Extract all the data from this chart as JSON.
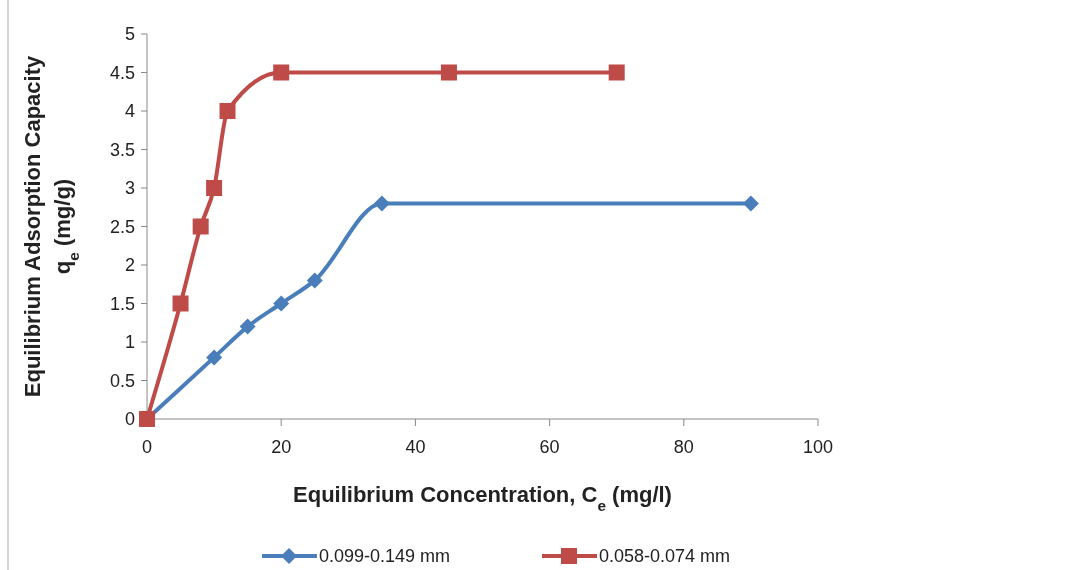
{
  "chart_data": {
    "type": "line",
    "xlabel": "Equilibrium Concentration, C$_{e}$ (mg/l)",
    "ylabel": "Equilibrium Adsorption Capacity\nq$_{e}$ (mg/g)",
    "xlim": [
      0,
      100
    ],
    "xticks": [
      0,
      20,
      40,
      60,
      80,
      100
    ],
    "ylim": [
      0,
      5
    ],
    "yticks": [
      0,
      0.5,
      1,
      1.5,
      2,
      2.5,
      3,
      3.5,
      4,
      4.5,
      5
    ],
    "grid": false,
    "legend": "bottom",
    "line_style": "solid",
    "series": [
      {
        "name": "0.099-0.149 mm",
        "color": "#4a7ebb",
        "marker": "diamond",
        "x": [
          0,
          10,
          15,
          20,
          25,
          35,
          90
        ],
        "values": [
          0,
          0.8,
          1.2,
          1.5,
          1.8,
          2.8,
          2.8
        ]
      },
      {
        "name": "0.058-0.074 mm",
        "color": "#be4b48",
        "marker": "square",
        "x": [
          0,
          5,
          8,
          10,
          12,
          20,
          45,
          70
        ],
        "values": [
          0,
          1.5,
          2.5,
          3,
          4,
          4.5,
          4.5,
          4.5
        ]
      }
    ]
  }
}
